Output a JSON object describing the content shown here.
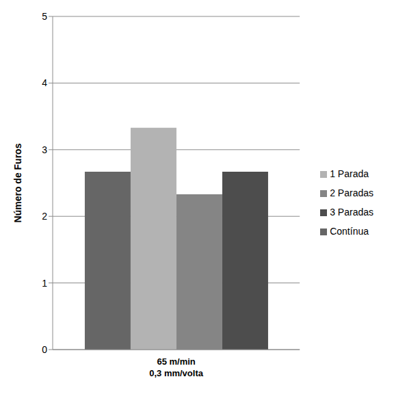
{
  "chart_data": {
    "type": "bar",
    "y_label": "Número de Furos",
    "categories": [
      "65 m/min\n0,3 mm/volta"
    ],
    "series": [
      {
        "name": "Contínua",
        "color": "#666666",
        "values": [
          2.67
        ]
      },
      {
        "name": "1 Parada",
        "color": "#b3b3b3",
        "values": [
          3.33
        ]
      },
      {
        "name": "2 Paradas",
        "color": "#858585",
        "values": [
          2.33
        ]
      },
      {
        "name": "3 Paradas",
        "color": "#4d4d4d",
        "values": [
          2.67
        ]
      }
    ],
    "ylim": [
      0,
      5
    ],
    "yticks": [
      0,
      1,
      2,
      3,
      4,
      5
    ],
    "grid": true,
    "legend": "right"
  }
}
